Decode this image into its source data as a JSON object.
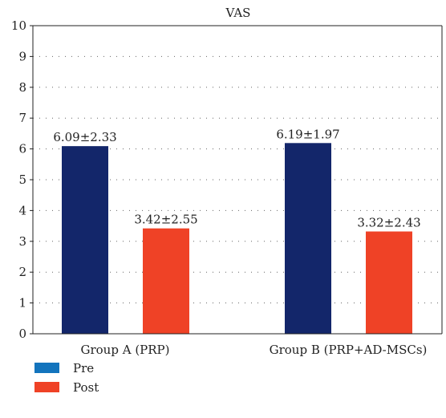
{
  "chart_data": {
    "type": "bar",
    "title": "VAS",
    "xlabel": "",
    "ylabel": "",
    "categories": [
      "Group A (PRP)",
      "Group B (PRP+AD-MSCs)"
    ],
    "series": [
      {
        "name": "Pre",
        "values": [
          6.09,
          6.19
        ],
        "labels": [
          "6.09±2.33",
          "6.19±1.97"
        ],
        "color": "#13266a",
        "legend_color": "#1374bd"
      },
      {
        "name": "Post",
        "values": [
          3.42,
          3.32
        ],
        "labels": [
          "3.42±2.55",
          "3.32±2.43"
        ],
        "color": "#ef4226",
        "legend_color": "#ef4226"
      }
    ],
    "ylim": [
      0,
      10
    ],
    "yticks": [
      "0",
      "1",
      "2",
      "3",
      "4",
      "5",
      "6",
      "7",
      "8",
      "9",
      "10"
    ],
    "grid": true,
    "legend_position": "bottom-left"
  }
}
